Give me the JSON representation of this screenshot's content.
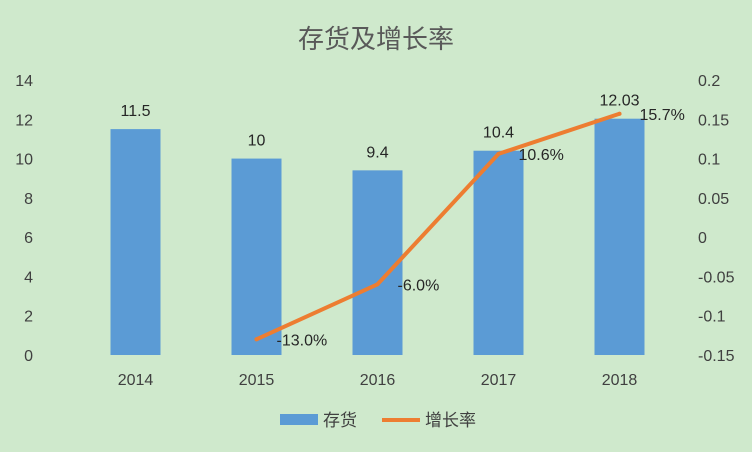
{
  "chart_data": {
    "type": "bar",
    "title": "存货及增长率",
    "categories": [
      "2014",
      "2015",
      "2016",
      "2017",
      "2018"
    ],
    "series": [
      {
        "name": "存货",
        "type": "bar",
        "axis": "left",
        "values": [
          11.5,
          10,
          9.4,
          10.4,
          12.03
        ],
        "labels": [
          "11.5",
          "10",
          "9.4",
          "10.4",
          "12.03"
        ],
        "color": "#5b9bd5"
      },
      {
        "name": "增长率",
        "type": "line",
        "axis": "right",
        "values": [
          null,
          -0.13,
          -0.06,
          0.106,
          0.157
        ],
        "labels": [
          "",
          "-13.0%",
          "-6.0%",
          "10.6%",
          "15.7%"
        ],
        "color": "#ed7d31"
      }
    ],
    "y_left": {
      "ylim": [
        0,
        14
      ],
      "ticks": [
        "0",
        "2",
        "4",
        "6",
        "8",
        "10",
        "12",
        "14"
      ]
    },
    "y_right": {
      "ylim": [
        -0.15,
        0.2
      ],
      "ticks": [
        "-0.15",
        "-0.1",
        "-0.05",
        "0",
        "0.05",
        "0.1",
        "0.15",
        "0.2"
      ]
    },
    "grid": false,
    "legend_position": "bottom",
    "background": "#cfe9cc"
  }
}
